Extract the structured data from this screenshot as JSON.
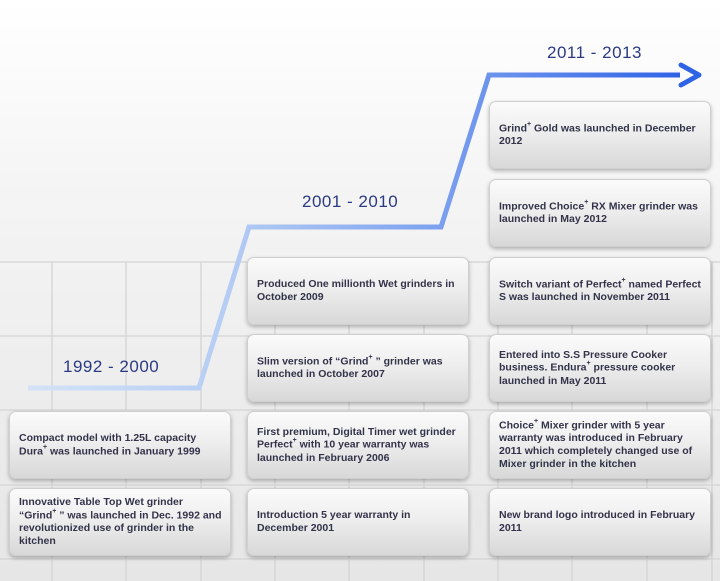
{
  "periods": [
    {
      "label": "1992 - 2000",
      "events": [
        {
          "parts": [
            "Compact model with 1.25L capacity Dura",
            "+",
            " was launched in January 1999"
          ]
        },
        {
          "parts": [
            "Innovative Table Top Wet grinder “Grind",
            "+",
            " ” was launched in Dec. 1992 and revolutionized use of grinder in the kitchen"
          ]
        }
      ]
    },
    {
      "label": "2001 - 2010",
      "events": [
        {
          "parts": [
            "Produced One millionth Wet grinders in October 2009"
          ]
        },
        {
          "parts": [
            "Slim version of “Grind",
            "+",
            " ” grinder was launched in October 2007"
          ]
        },
        {
          "parts": [
            "First premium, Digital Timer wet grinder Perfect",
            "+",
            "  with 10 year warranty was launched in February 2006"
          ]
        },
        {
          "parts": [
            "Introduction 5 year warranty in December 2001"
          ]
        }
      ]
    },
    {
      "label": "2011 - 2013",
      "events": [
        {
          "parts": [
            "Grind",
            "+",
            "  Gold was launched in December 2012"
          ]
        },
        {
          "parts": [
            "Improved Choice",
            "+",
            " RX Mixer grinder was launched in May 2012"
          ]
        },
        {
          "parts": [
            "Switch variant of Perfect",
            "+",
            "  named Perfect S was launched in November 2011"
          ]
        },
        {
          "parts": [
            "Entered into S.S Pressure Cooker business. Endura",
            "+",
            "  pressure cooker launched in May 2011"
          ]
        },
        {
          "parts": [
            "Choice",
            "+",
            " Mixer grinder with 5 year warranty was introduced in February 2011 which completely changed use of Mixer grinder in the kitchen"
          ]
        },
        {
          "parts": [
            "New brand logo introduced in February 2011"
          ]
        }
      ]
    }
  ],
  "colors": {
    "line_start": "#d3e3f7",
    "line_end": "#2f63e6",
    "period_text": "#2b3a82"
  }
}
